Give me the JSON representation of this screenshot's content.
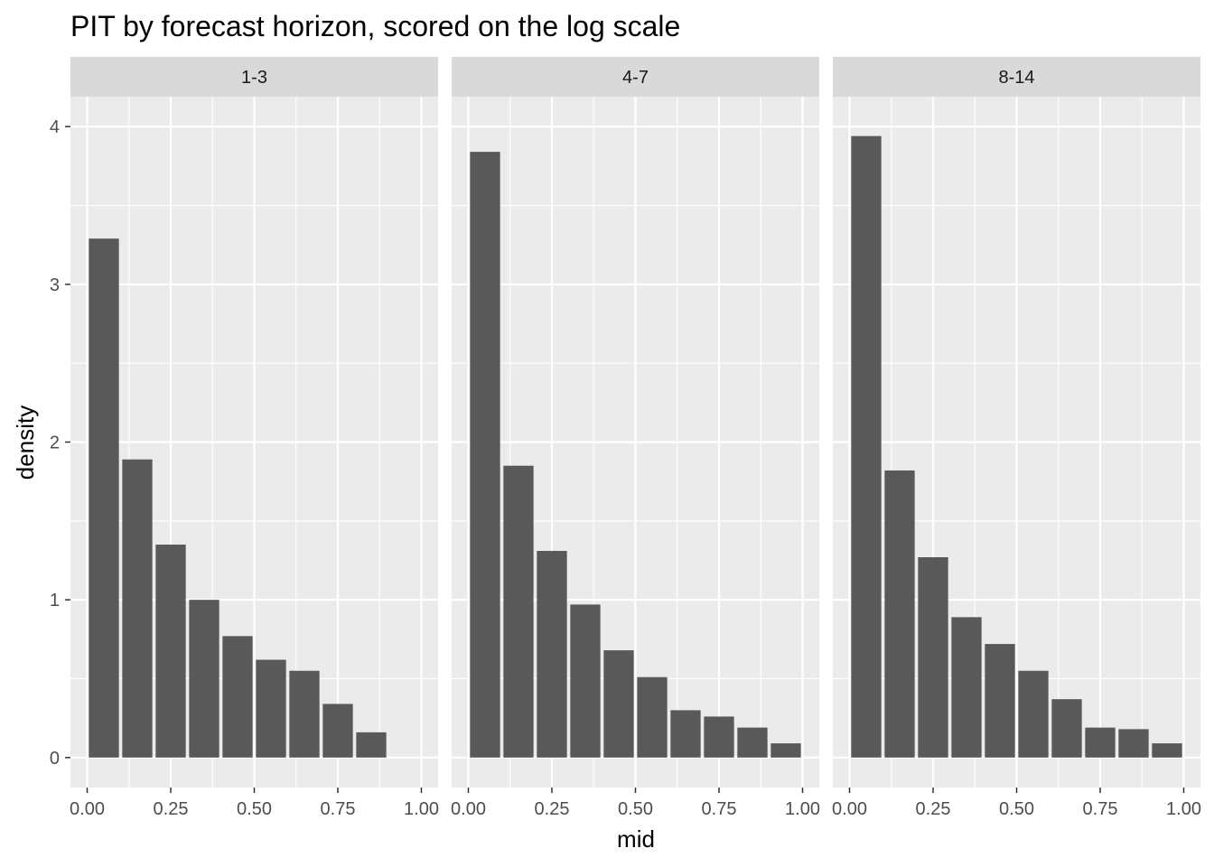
{
  "chart_data": {
    "type": "bar",
    "title": "PIT by forecast horizon, scored on the log scale",
    "xlabel": "mid",
    "ylabel": "density",
    "xlim": [
      -0.05,
      1.05
    ],
    "ylim": [
      -0.19,
      4.19
    ],
    "x_ticks": [
      "0.00",
      "0.25",
      "0.50",
      "0.75",
      "1.00"
    ],
    "y_ticks": [
      "0",
      "1",
      "2",
      "3",
      "4"
    ],
    "x": [
      0.05,
      0.15,
      0.25,
      0.35,
      0.45,
      0.55,
      0.65,
      0.75,
      0.85,
      0.95
    ],
    "bar_width": 0.09,
    "panels": [
      {
        "name": "1-3",
        "values": [
          3.29,
          1.89,
          1.35,
          1.0,
          0.77,
          0.62,
          0.55,
          0.34,
          0.16,
          0.0
        ]
      },
      {
        "name": "4-7",
        "values": [
          3.84,
          1.85,
          1.31,
          0.97,
          0.68,
          0.51,
          0.3,
          0.26,
          0.19,
          0.09
        ]
      },
      {
        "name": "8-14",
        "values": [
          3.94,
          1.82,
          1.27,
          0.89,
          0.72,
          0.55,
          0.37,
          0.19,
          0.18,
          0.09
        ]
      }
    ],
    "grid": true,
    "colors": {
      "panel_bg": "#ebebeb",
      "strip_bg": "#d9d9d9",
      "grid": "#ffffff",
      "bar": "#595959",
      "tick": "#333333"
    }
  }
}
